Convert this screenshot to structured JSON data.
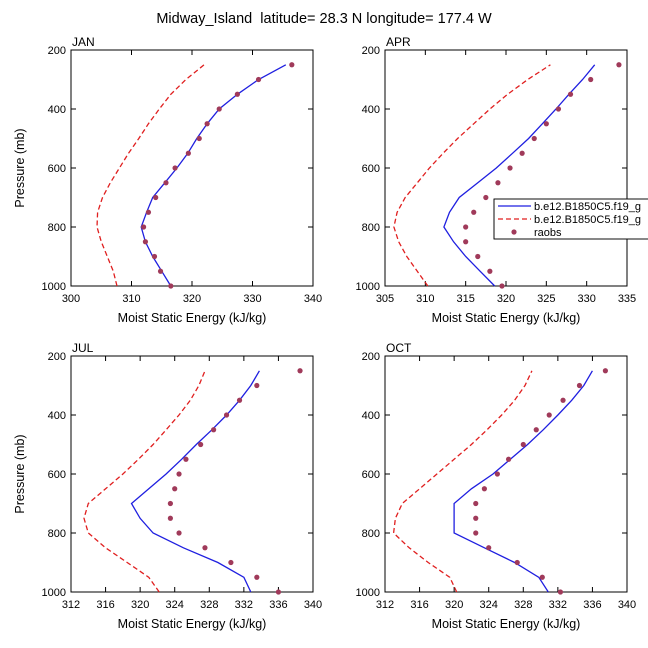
{
  "title": "Midway_Island  latitude= 28.3 N longitude= 177.4 W",
  "colors": {
    "model1": "#1f1fe0",
    "model2": "#e01f1f",
    "obs": "#a03a5a",
    "axis": "#000000"
  },
  "legend": {
    "items": [
      {
        "label": "b.e12.B1850C5.f19_g",
        "style": "solid-line",
        "color": "#1f1fe0"
      },
      {
        "label": "b.e12.B1850C5.f19_g",
        "style": "dashed-line",
        "color": "#e01f1f"
      },
      {
        "label": "raobs",
        "style": "marker",
        "color": "#a03a5a"
      }
    ]
  },
  "chart_data": [
    {
      "type": "line",
      "panel_label": "JAN",
      "xlabel": "Moist Static Energy (kJ/kg)",
      "ylabel": "Pressure (mb)",
      "xlim": [
        300,
        340
      ],
      "xticks": [
        300,
        310,
        320,
        330,
        340
      ],
      "xtick_labels": [
        "300",
        "310",
        "320",
        "330",
        "340"
      ],
      "ylim": [
        1000,
        200
      ],
      "yticks": [
        200,
        400,
        600,
        800,
        1000
      ],
      "ytick_labels": [
        "200",
        "400",
        "600",
        "800",
        "1000"
      ],
      "y": [
        1000,
        950,
        900,
        850,
        800,
        750,
        700,
        650,
        600,
        550,
        500,
        450,
        400,
        350,
        300,
        250
      ],
      "series": [
        {
          "values": [
            316.5,
            315.0,
            313.5,
            312.3,
            311.6,
            312.5,
            313.5,
            315.5,
            317.5,
            319.3,
            320.8,
            322.5,
            324.5,
            327.5,
            331.0,
            335.5
          ],
          "style": "solid",
          "color": "#1f1fe0"
        },
        {
          "values": [
            307.6,
            307.0,
            306.0,
            305.0,
            304.3,
            304.4,
            305.2,
            306.5,
            308.0,
            309.5,
            311.2,
            312.8,
            314.6,
            316.5,
            319.0,
            322.0
          ],
          "style": "dashed",
          "color": "#e01f1f"
        },
        {
          "values": [
            316.5,
            314.8,
            313.8,
            312.3,
            312.0,
            312.8,
            314.0,
            315.7,
            317.2,
            319.4,
            321.2,
            322.5,
            324.5,
            327.5,
            331.0,
            336.5
          ],
          "style": "markers",
          "color": "#a03a5a"
        }
      ]
    },
    {
      "type": "line",
      "panel_label": "APR",
      "xlabel": "Moist Static Energy (kJ/kg)",
      "ylabel": "",
      "xlim": [
        305,
        335
      ],
      "xticks": [
        305,
        310,
        315,
        320,
        325,
        330,
        335
      ],
      "xtick_labels": [
        "305",
        "310",
        "315",
        "320",
        "325",
        "330",
        "335"
      ],
      "ylim": [
        1000,
        200
      ],
      "yticks": [
        200,
        400,
        600,
        800,
        1000
      ],
      "ytick_labels": [
        "200",
        "400",
        "600",
        "800",
        "1000"
      ],
      "y": [
        1000,
        950,
        900,
        850,
        800,
        750,
        700,
        650,
        600,
        550,
        500,
        450,
        400,
        350,
        300,
        250
      ],
      "series": [
        {
          "values": [
            318.6,
            316.8,
            315.0,
            313.5,
            312.3,
            313.0,
            314.2,
            316.5,
            318.8,
            320.8,
            322.8,
            324.5,
            326.2,
            327.8,
            329.5,
            331.0
          ],
          "style": "solid",
          "color": "#1f1fe0"
        },
        {
          "values": [
            310.3,
            309.0,
            307.7,
            306.7,
            306.1,
            306.5,
            307.5,
            309.0,
            310.5,
            312.2,
            314.0,
            316.0,
            318.0,
            320.2,
            322.7,
            325.5
          ],
          "style": "dashed",
          "color": "#e01f1f"
        },
        {
          "values": [
            319.5,
            318.0,
            316.5,
            315.0,
            315.0,
            316.0,
            317.5,
            319.0,
            320.5,
            322.0,
            323.5,
            325.0,
            326.5,
            328.0,
            330.5,
            334.0
          ],
          "style": "markers",
          "color": "#a03a5a"
        }
      ]
    },
    {
      "type": "line",
      "panel_label": "JUL",
      "xlabel": "Moist Static Energy (kJ/kg)",
      "ylabel": "Pressure (mb)",
      "xlim": [
        312,
        340
      ],
      "xticks": [
        312,
        316,
        320,
        324,
        328,
        332,
        336,
        340
      ],
      "xtick_labels": [
        "312",
        "316",
        "320",
        "324",
        "328",
        "332",
        "336",
        "340"
      ],
      "ylim": [
        1000,
        200
      ],
      "yticks": [
        200,
        400,
        600,
        800,
        1000
      ],
      "ytick_labels": [
        "200",
        "400",
        "600",
        "800",
        "1000"
      ],
      "y": [
        1000,
        950,
        900,
        850,
        800,
        750,
        700,
        650,
        600,
        550,
        500,
        450,
        400,
        350,
        300,
        250
      ],
      "series": [
        {
          "values": [
            332.8,
            332.0,
            329.0,
            325.0,
            321.5,
            320.0,
            319.0,
            321.0,
            323.0,
            324.8,
            326.5,
            328.3,
            330.0,
            331.5,
            332.8,
            333.8
          ],
          "style": "solid",
          "color": "#1f1fe0"
        },
        {
          "values": [
            322.2,
            321.0,
            318.5,
            316.0,
            314.0,
            313.5,
            314.0,
            316.0,
            318.0,
            319.8,
            321.5,
            323.0,
            324.5,
            325.8,
            326.8,
            327.5
          ],
          "style": "dashed",
          "color": "#e01f1f"
        },
        {
          "values": [
            336.0,
            333.5,
            330.5,
            327.5,
            324.5,
            323.5,
            323.5,
            324.0,
            324.5,
            325.3,
            327.0,
            328.5,
            330.0,
            331.5,
            333.5,
            338.5
          ],
          "style": "markers",
          "color": "#a03a5a"
        }
      ]
    },
    {
      "type": "line",
      "panel_label": "OCT",
      "xlabel": "Moist Static Energy (kJ/kg)",
      "ylabel": "",
      "xlim": [
        312,
        340
      ],
      "xticks": [
        312,
        316,
        320,
        324,
        328,
        332,
        336,
        340
      ],
      "xtick_labels": [
        "312",
        "316",
        "320",
        "324",
        "328",
        "332",
        "336",
        "340"
      ],
      "ylim": [
        1000,
        200
      ],
      "yticks": [
        200,
        400,
        600,
        800,
        1000
      ],
      "ytick_labels": [
        "200",
        "400",
        "600",
        "800",
        "1000"
      ],
      "y": [
        1000,
        950,
        900,
        850,
        800,
        750,
        700,
        650,
        600,
        550,
        500,
        450,
        400,
        350,
        300,
        250
      ],
      "series": [
        {
          "values": [
            330.9,
            329.8,
            327.0,
            323.5,
            320.0,
            320.0,
            320.0,
            322.0,
            324.5,
            326.5,
            328.5,
            330.3,
            332.0,
            333.6,
            335.0,
            336.0
          ],
          "style": "solid",
          "color": "#1f1fe0"
        },
        {
          "values": [
            320.3,
            319.5,
            317.0,
            314.8,
            313.0,
            313.2,
            314.0,
            316.0,
            318.0,
            320.0,
            322.0,
            323.8,
            325.5,
            327.0,
            328.2,
            329.0
          ],
          "style": "dashed",
          "color": "#e01f1f"
        },
        {
          "values": [
            332.3,
            330.2,
            327.3,
            324.0,
            322.5,
            322.5,
            322.5,
            323.5,
            325.0,
            326.3,
            328.0,
            329.5,
            331.0,
            332.6,
            334.5,
            337.5
          ],
          "style": "markers",
          "color": "#a03a5a"
        }
      ]
    }
  ]
}
